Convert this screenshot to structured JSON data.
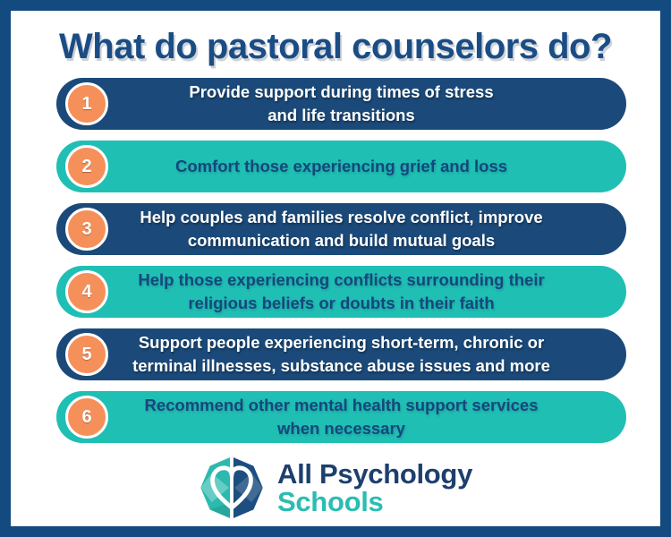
{
  "title": "What do pastoral counselors do?",
  "items": [
    {
      "number": "1",
      "style": "navy",
      "lines": [
        "Provide support during times of stress",
        "and life transitions"
      ]
    },
    {
      "number": "2",
      "style": "teal",
      "lines": [
        "Comfort those experiencing grief and loss"
      ]
    },
    {
      "number": "3",
      "style": "navy",
      "lines": [
        "Help couples and families resolve conflict, improve",
        "communication and build mutual goals"
      ]
    },
    {
      "number": "4",
      "style": "teal",
      "lines": [
        "Help those experiencing conflicts surrounding their",
        "religious beliefs or doubts in their faith"
      ]
    },
    {
      "number": "5",
      "style": "navy",
      "lines": [
        "Support people experiencing short-term, chronic or",
        "terminal illnesses, substance abuse issues and more"
      ]
    },
    {
      "number": "6",
      "style": "teal",
      "lines": [
        "Recommend other mental health support services",
        "when necessary"
      ]
    }
  ],
  "logo": {
    "icon": "heart-polygon-icon",
    "name_line1": "All Psychology",
    "name_line2": "Schools"
  },
  "colors": {
    "border_navy": "#134b80",
    "bar_navy": "#1b4a7a",
    "bar_teal": "#20bfb4",
    "circle_orange": "#f6905a",
    "title_navy": "#1b4d85",
    "text_on_teal": "#15477c",
    "logo_navy": "#1d3f6e",
    "logo_teal": "#2bbcb2",
    "logo_teal_light": "#7fd4cc",
    "logo_blue_light": "#2e6da8"
  }
}
